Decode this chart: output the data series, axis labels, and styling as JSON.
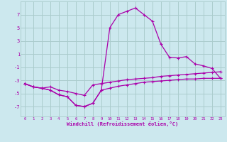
{
  "xlabel": "Windchill (Refroidissement éolien,°C)",
  "background_color": "#cce8ee",
  "grid_color": "#aacccc",
  "line_color": "#aa00aa",
  "x_values": [
    0,
    1,
    2,
    3,
    4,
    5,
    6,
    7,
    8,
    9,
    10,
    11,
    12,
    13,
    14,
    15,
    16,
    17,
    18,
    19,
    20,
    21,
    22,
    23
  ],
  "line1_y": [
    -3.5,
    -4.0,
    -4.2,
    -4.5,
    -5.2,
    -5.5,
    -6.8,
    -7.0,
    -6.5,
    -4.5,
    -4.2,
    -3.9,
    -3.7,
    -3.5,
    -3.3,
    -3.2,
    -3.1,
    -3.0,
    -2.9,
    -2.8,
    -2.8,
    -2.7,
    -2.7,
    -2.7
  ],
  "line2_y": [
    -3.5,
    -4.0,
    -4.2,
    -4.5,
    -5.2,
    -5.5,
    -6.8,
    -7.0,
    -6.5,
    -4.5,
    5.0,
    7.0,
    7.5,
    8.0,
    7.0,
    6.0,
    2.5,
    0.5,
    0.4,
    0.6,
    -0.5,
    -0.8,
    -1.2,
    -2.7
  ],
  "line3_y": [
    -3.5,
    -4.0,
    -4.2,
    -4.0,
    -4.5,
    -4.7,
    -5.0,
    -5.3,
    -3.7,
    -3.5,
    -3.3,
    -3.1,
    -2.9,
    -2.8,
    -2.7,
    -2.6,
    -2.4,
    -2.3,
    -2.2,
    -2.1,
    -2.0,
    -1.9,
    -1.8,
    -1.7
  ],
  "ylim": [
    -8.5,
    9.0
  ],
  "yticks": [
    -7,
    -5,
    -3,
    -1,
    1,
    3,
    5,
    7
  ],
  "xlim": [
    -0.5,
    23.5
  ]
}
